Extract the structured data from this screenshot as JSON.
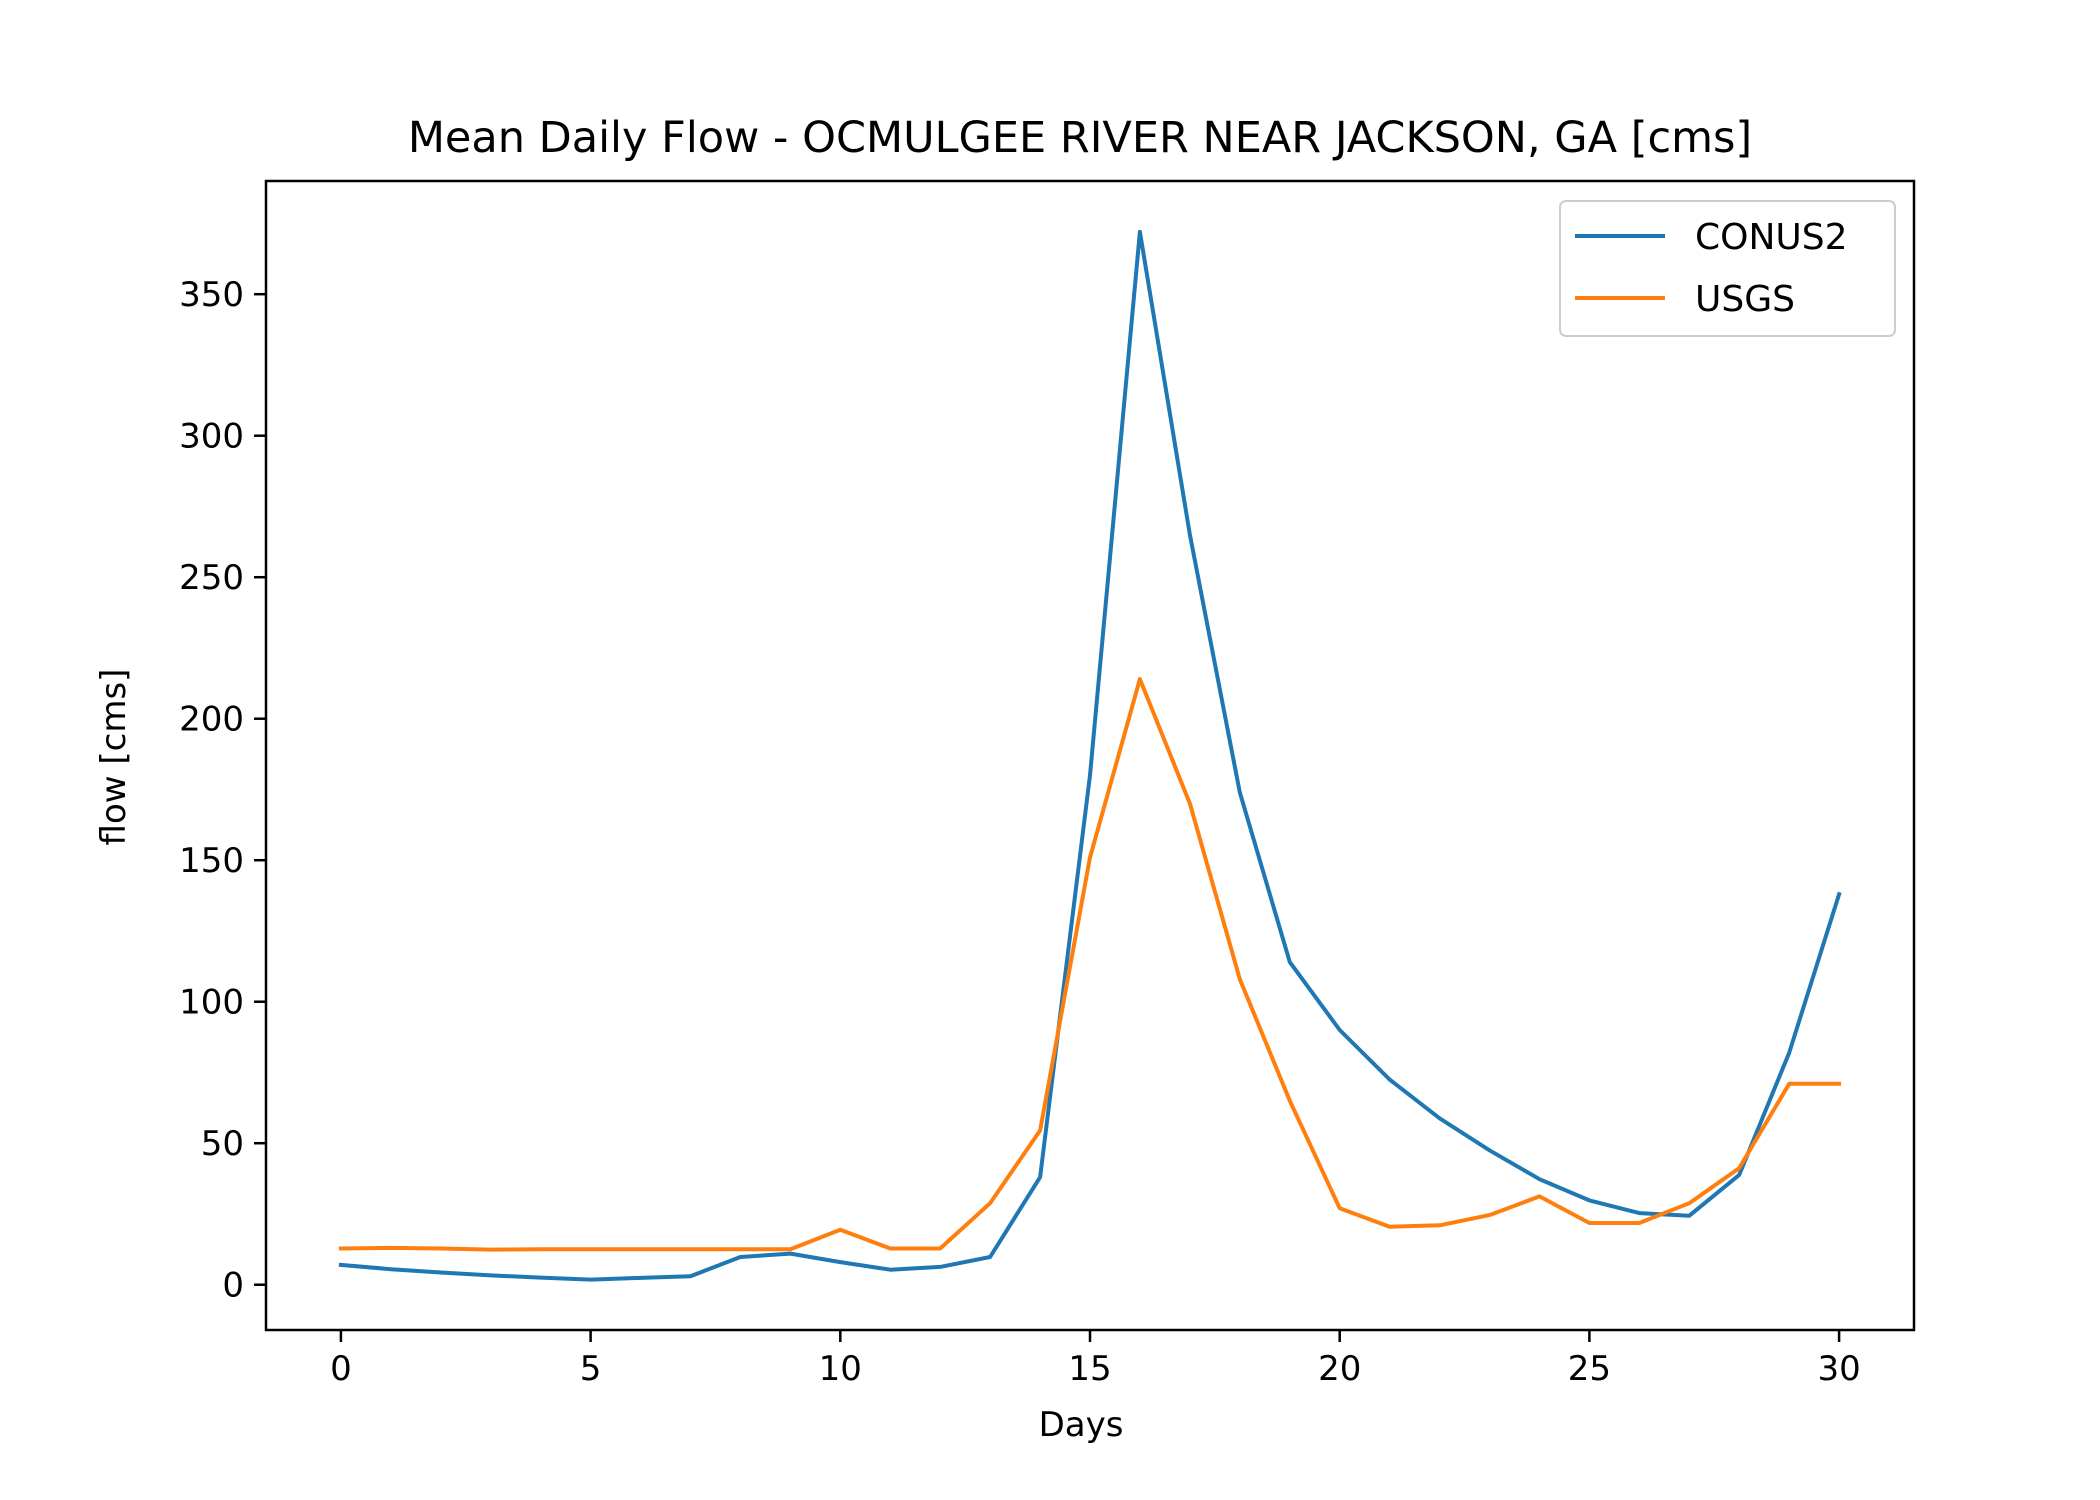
{
  "chart_data": {
    "type": "line",
    "title": "Mean Daily Flow - OCMULGEE RIVER NEAR JACKSON, GA [cms]",
    "xlabel": "Days",
    "ylabel": "flow [cms]",
    "xlim": [
      -1.5,
      31.5
    ],
    "ylim": [
      -16,
      390
    ],
    "xticks": [
      0,
      5,
      10,
      15,
      20,
      25,
      30
    ],
    "yticks": [
      0,
      50,
      100,
      150,
      200,
      250,
      300,
      350
    ],
    "grid": false,
    "legend_position": "top-right",
    "x": [
      0,
      1,
      2,
      3,
      4,
      5,
      6,
      7,
      8,
      9,
      10,
      11,
      12,
      13,
      14,
      15,
      16,
      17,
      18,
      19,
      20,
      21,
      22,
      23,
      24,
      25,
      26,
      27,
      28,
      29,
      30
    ],
    "series": [
      {
        "name": "CONUS2",
        "color": "#1f77b4",
        "values": [
          7,
          5.5,
          4.3,
          3.3,
          2.5,
          1.8,
          2.4,
          3,
          9.8,
          11,
          8,
          5.3,
          6.3,
          9.8,
          38,
          180,
          372,
          265,
          174,
          114,
          90,
          72.5,
          58.8,
          47.5,
          37.3,
          29.8,
          25.3,
          24.4,
          38.8,
          82,
          138
        ]
      },
      {
        "name": "USGS",
        "color": "#ff7f0e",
        "values": [
          12.8,
          13,
          12.8,
          12.4,
          12.5,
          12.5,
          12.5,
          12.5,
          12.5,
          12.5,
          19.4,
          12.8,
          12.8,
          28.8,
          54.5,
          151,
          214,
          170,
          108,
          65,
          27,
          20.5,
          21,
          24.6,
          31.2,
          21.8,
          21.8,
          28.8,
          41.2,
          71,
          71
        ]
      }
    ]
  }
}
